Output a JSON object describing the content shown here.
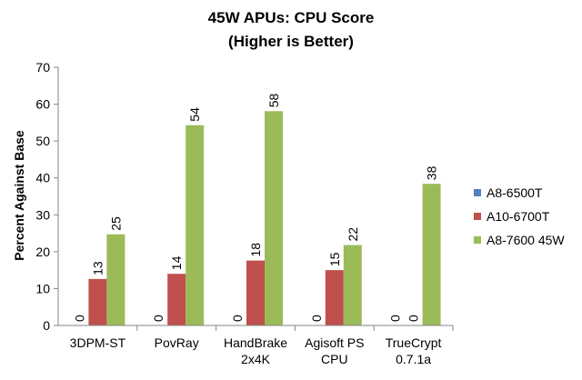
{
  "chart_data": {
    "type": "bar",
    "title": "45W APUs: CPU Score",
    "subtitle": "(Higher is Better)",
    "ylabel": "Percent Against Base",
    "xlabel": "",
    "ylim": [
      0,
      70
    ],
    "y_ticks": [
      0,
      10,
      20,
      30,
      40,
      50,
      60,
      70
    ],
    "grid": false,
    "legend_position": "right",
    "categories": [
      [
        "3DPM-ST"
      ],
      [
        "PovRay"
      ],
      [
        "HandBrake",
        "2x4K"
      ],
      [
        "Agisoft PS",
        "CPU"
      ],
      [
        "TrueCrypt",
        "0.7.1a"
      ]
    ],
    "series": [
      {
        "name": "A8-6500T",
        "color": "#4F81BD",
        "values": [
          0,
          0,
          0,
          0,
          0
        ],
        "labels": [
          "0",
          "0",
          "0",
          "0",
          "0"
        ]
      },
      {
        "name": "A10-6700T",
        "color": "#C0504D",
        "values": [
          12.6,
          14,
          17.6,
          15,
          0
        ],
        "labels": [
          "13",
          "14",
          "18",
          "15",
          "0"
        ]
      },
      {
        "name": "A8-7600 45W",
        "color": "#9BBB59",
        "values": [
          24.7,
          54.3,
          58.1,
          21.8,
          38.4
        ],
        "labels": [
          "25",
          "54",
          "58",
          "22",
          "38"
        ]
      }
    ]
  }
}
